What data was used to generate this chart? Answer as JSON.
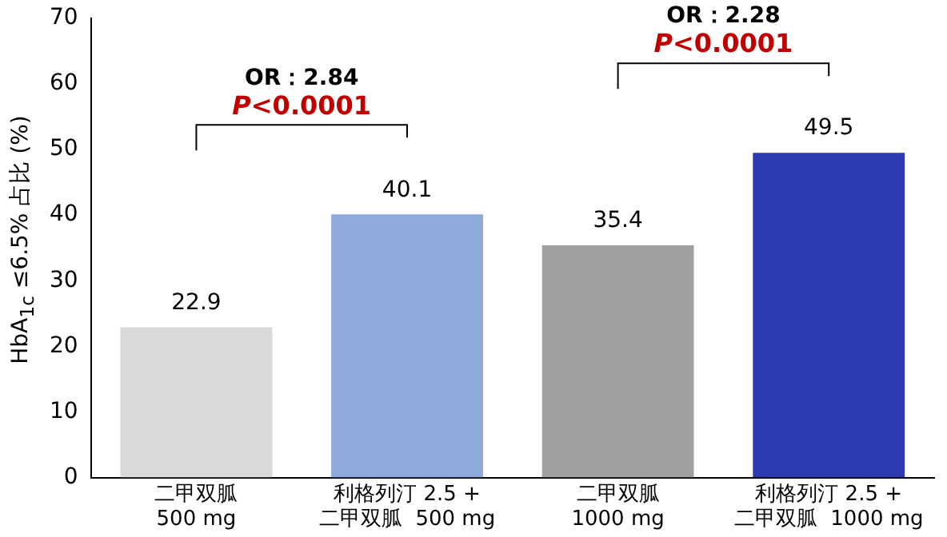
{
  "chart_data": {
    "type": "bar",
    "ylabel": "HbA$_{1c}$ ≤6.5% 占比 (%)",
    "categories": [
      "二甲双胍\n500 mg",
      "利格列汀 2.5 +\n二甲双胍  500 mg",
      "二甲双胍\n1000 mg",
      "利格列汀 2.5 +\n二甲双胍  1000 mg"
    ],
    "values": [
      22.9,
      40.1,
      35.4,
      49.5
    ],
    "colors": [
      "#d9d9d9",
      "#8eaadb",
      "#a0a0a0",
      "#2e3bb0"
    ],
    "ylim": [
      0,
      70
    ],
    "yticks": [
      0,
      10,
      20,
      30,
      40,
      50,
      60,
      70
    ],
    "grid": false,
    "legend": false,
    "data_labels": true,
    "annotations": [
      "OR：2.84",
      "P<0.0001",
      "OR：2.28",
      "P<0.0001"
    ]
  }
}
